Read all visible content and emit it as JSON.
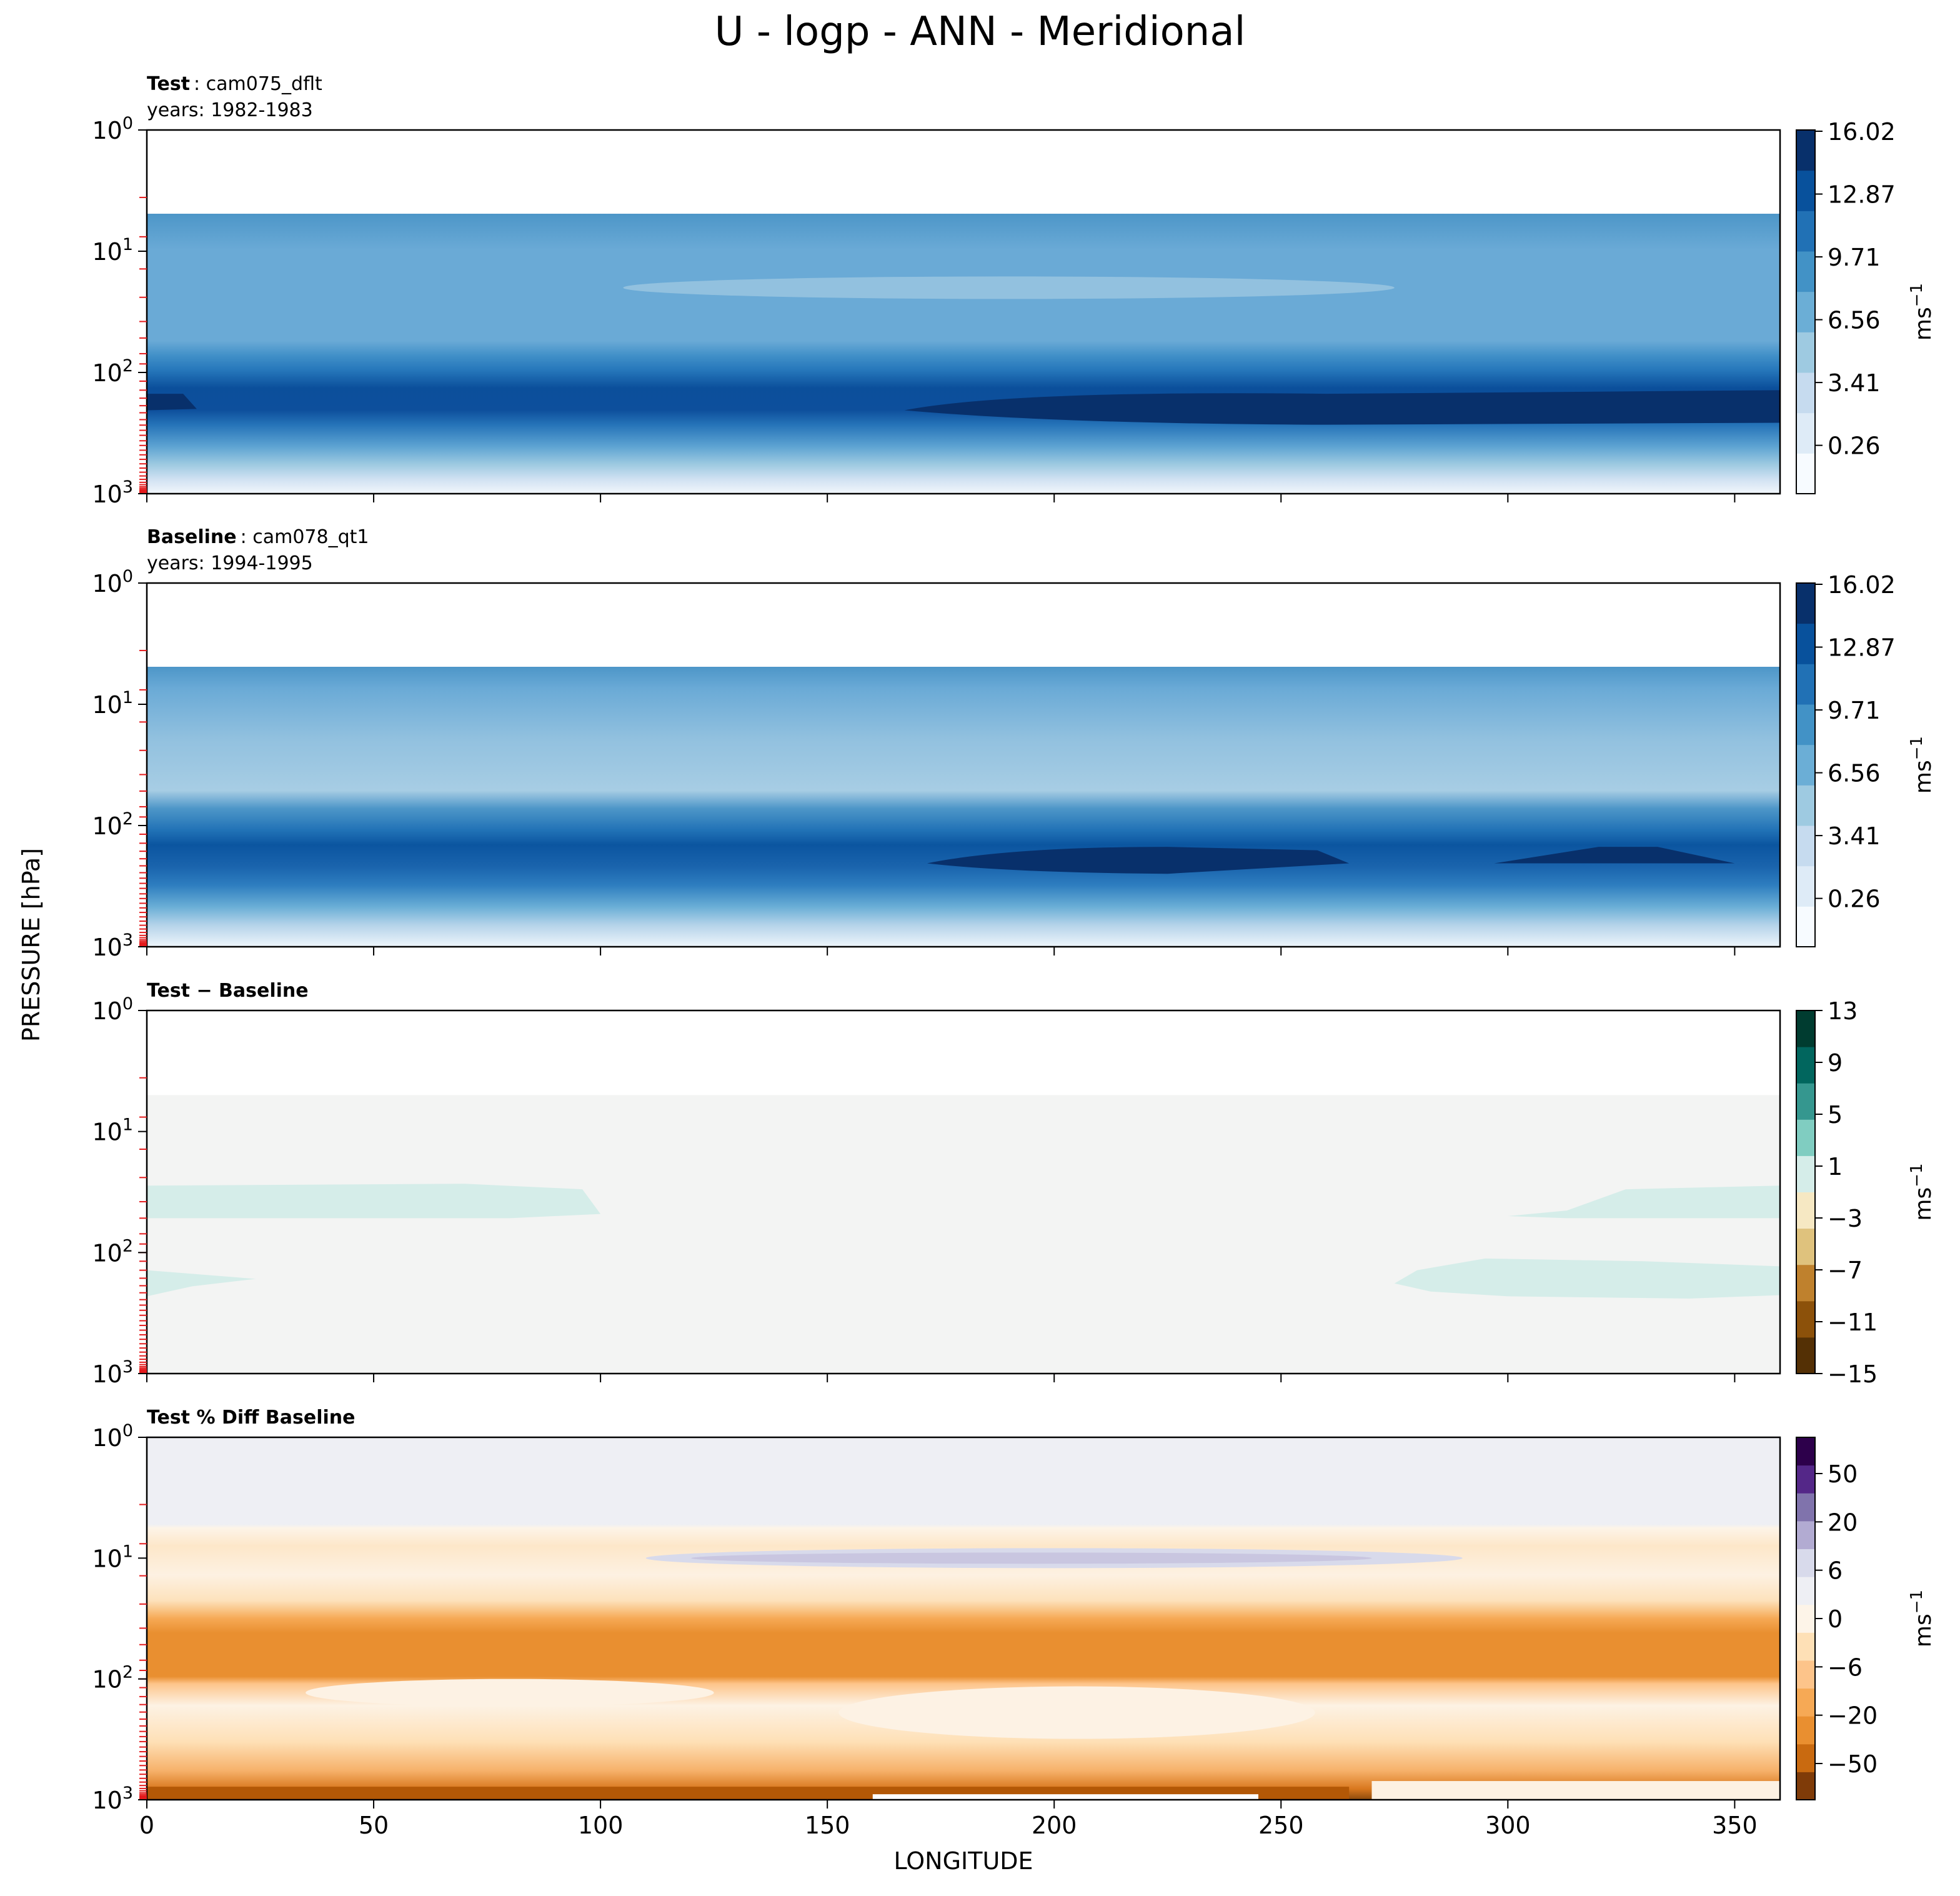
{
  "figure": {
    "title": "U - logp - ANN - Meridional",
    "shared_ylabel": "PRESSURE [hPa]",
    "shared_xlabel": "LONGITUDE",
    "x_ticks": [
      "0",
      "50",
      "100",
      "150",
      "200",
      "250",
      "300",
      "350"
    ],
    "y_ticks": [
      {
        "base": "10",
        "exp": "0"
      },
      {
        "base": "10",
        "exp": "1"
      },
      {
        "base": "10",
        "exp": "2"
      },
      {
        "base": "10",
        "exp": "3"
      }
    ],
    "colorbar_unit": "ms",
    "colorbar_unit_exp": "−1"
  },
  "chart_data": [
    {
      "type": "heatmap",
      "panel_label_bold": "Test",
      "panel_label_rest": ": cam075_dflt",
      "years": "years: 1982-1983",
      "xlabel": "LONGITUDE",
      "ylabel": "PRESSURE [hPa]",
      "xlim": [
        0,
        360
      ],
      "ylim": [
        1000,
        1
      ],
      "yscale": "log",
      "colormap": "blues",
      "colorbar_ticks": [
        "16.02",
        "12.87",
        "9.71",
        "6.56",
        "3.41",
        "0.26"
      ],
      "colorbar_range": [
        -1,
        16.5
      ]
    },
    {
      "type": "heatmap",
      "panel_label_bold": "Baseline",
      "panel_label_rest": ": cam078_qt1",
      "years": "years: 1994-1995",
      "xlabel": "LONGITUDE",
      "ylabel": "PRESSURE [hPa]",
      "xlim": [
        0,
        360
      ],
      "ylim": [
        1000,
        1
      ],
      "yscale": "log",
      "colormap": "blues",
      "colorbar_ticks": [
        "16.02",
        "12.87",
        "9.71",
        "6.56",
        "3.41",
        "0.26"
      ],
      "colorbar_range": [
        -1,
        16.5
      ]
    },
    {
      "type": "heatmap",
      "panel_label_bold": "Test − Baseline",
      "panel_label_rest": "",
      "years": "",
      "xlabel": "LONGITUDE",
      "ylabel": "PRESSURE [hPa]",
      "xlim": [
        0,
        360
      ],
      "ylim": [
        1000,
        1
      ],
      "yscale": "log",
      "colormap": "brown-white-green",
      "colorbar_ticks": [
        "13",
        "9",
        "5",
        "1",
        "−3",
        "−7",
        "−11",
        "−15"
      ],
      "colorbar_range": [
        -15,
        13
      ]
    },
    {
      "type": "heatmap",
      "panel_label_bold": "Test % Diff Baseline",
      "panel_label_rest": "",
      "years": "",
      "xlabel": "LONGITUDE",
      "ylabel": "PRESSURE [hPa]",
      "xlim": [
        0,
        360
      ],
      "ylim": [
        1000,
        1
      ],
      "yscale": "log",
      "colormap": "orange-white-purple",
      "colorbar_ticks": [
        "50",
        "20",
        "6",
        "0",
        "−6",
        "−20",
        "−50"
      ],
      "colorbar_range": [
        -100,
        100
      ]
    }
  ],
  "colors": {
    "blues": [
      "#f7fbff",
      "#deebf7",
      "#c6dbef",
      "#9ecae1",
      "#6baed6",
      "#4292c6",
      "#2171b5",
      "#08519c",
      "#08306b"
    ],
    "diff_bwg": [
      "#543005",
      "#8c510a",
      "#bf812d",
      "#dfc27d",
      "#f6e8c3",
      "#d5ede9",
      "#80cdc1",
      "#35978f",
      "#01665e",
      "#003c30"
    ],
    "pct_opu": [
      "#2d004b",
      "#542788",
      "#8073ac",
      "#b2abd2",
      "#d8daeb",
      "#eeeff4",
      "#fdf4e8",
      "#fee0b6",
      "#fdc48a",
      "#f6a955",
      "#e98f30",
      "#c96a10",
      "#7f3b08"
    ],
    "level_tick": "#e41a1c"
  }
}
